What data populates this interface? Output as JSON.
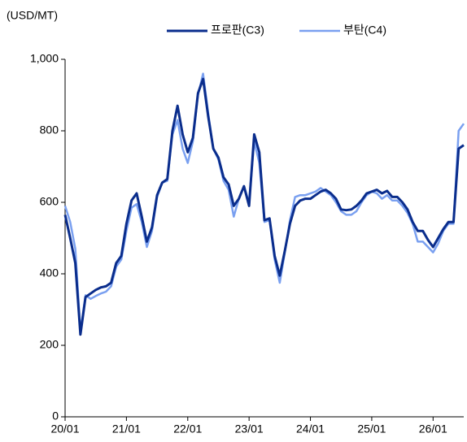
{
  "chart_data": {
    "type": "line",
    "y_label": "(USD/MT)",
    "categories": [
      "20/01",
      null,
      null,
      null,
      null,
      null,
      null,
      null,
      null,
      null,
      null,
      null,
      "21/01",
      null,
      null,
      null,
      null,
      null,
      null,
      null,
      null,
      null,
      null,
      null,
      "22/01",
      null,
      null,
      null,
      null,
      null,
      null,
      null,
      null,
      null,
      null,
      null,
      "23/01",
      null,
      null,
      null,
      null,
      null,
      null,
      null,
      null,
      null,
      null,
      null,
      "24/01",
      null,
      null,
      null,
      null,
      null,
      null,
      null,
      null,
      null,
      null,
      null,
      "25/01",
      null,
      null,
      null,
      null,
      null,
      null,
      null,
      null,
      null,
      null,
      null,
      "26/01",
      null,
      null,
      null,
      null,
      null,
      null
    ],
    "series": [
      {
        "name": "프로판(C3)",
        "color": "#0a2d8c",
        "width": 3,
        "values": [
          565,
          500,
          430,
          230,
          335,
          345,
          355,
          362,
          365,
          375,
          430,
          450,
          540,
          605,
          625,
          560,
          490,
          530,
          620,
          655,
          665,
          800,
          870,
          790,
          740,
          780,
          905,
          945,
          840,
          750,
          725,
          670,
          650,
          590,
          610,
          645,
          590,
          790,
          740,
          550,
          555,
          450,
          395,
          465,
          540,
          590,
          605,
          610,
          610,
          620,
          630,
          635,
          625,
          610,
          580,
          578,
          580,
          590,
          605,
          625,
          630,
          635,
          625,
          632,
          615,
          615,
          600,
          580,
          545,
          520,
          520,
          495,
          475,
          500,
          525,
          545,
          545,
          750,
          760
        ]
      },
      {
        "name": "부탄(C4)",
        "color": "#7aa0f0",
        "width": 2.5,
        "values": [
          590,
          545,
          470,
          240,
          340,
          330,
          338,
          345,
          350,
          365,
          420,
          440,
          520,
          585,
          595,
          545,
          475,
          520,
          615,
          655,
          660,
          790,
          830,
          750,
          710,
          770,
          900,
          960,
          850,
          750,
          720,
          660,
          635,
          560,
          610,
          645,
          600,
          770,
          710,
          545,
          550,
          440,
          375,
          460,
          550,
          615,
          620,
          620,
          625,
          630,
          640,
          630,
          620,
          600,
          575,
          565,
          565,
          575,
          600,
          620,
          630,
          625,
          610,
          620,
          605,
          605,
          590,
          570,
          540,
          490,
          490,
          475,
          460,
          485,
          520,
          540,
          540,
          800,
          820
        ]
      }
    ],
    "ylim": [
      0,
      1000
    ],
    "yticks": [
      0,
      200,
      400,
      600,
      800,
      {
        "value": 1000,
        "label": "1,000"
      }
    ],
    "grid": false
  }
}
